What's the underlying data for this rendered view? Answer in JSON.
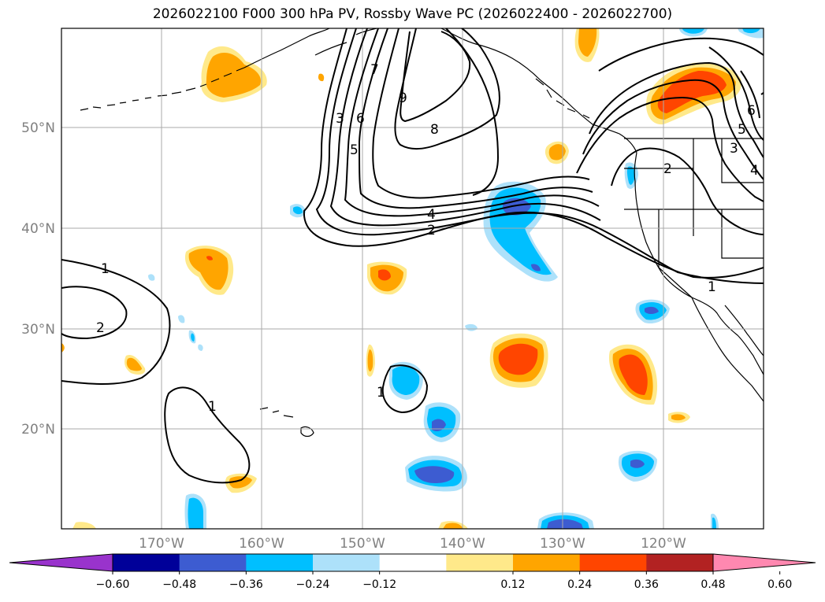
{
  "title": "2026022100 F000 300 hPa PV, Rossby Wave PC (2026022400 - 2026022700)",
  "latitude_labels": [
    "50°N",
    "40°N",
    "30°N",
    "20°N"
  ],
  "longitude_labels": [
    "170°W",
    "160°W",
    "150°W",
    "140°W",
    "130°W",
    "120°W"
  ],
  "colorbar": {
    "tick_labels": [
      "−0.60",
      "−0.48",
      "−0.36",
      "−0.24",
      "−0.12",
      "0.12",
      "0.24",
      "0.36",
      "0.48",
      "0.60"
    ],
    "colors": [
      "#9933cc",
      "#000099",
      "#3d5cd1",
      "#00bfff",
      "#ade1fa",
      "#ffffff",
      "#ffe98a",
      "#ffa500",
      "#ff4500",
      "#b22222",
      "#ff88b0"
    ]
  },
  "contour_labels": [
    "1",
    "2",
    "1",
    "3",
    "6",
    "5",
    "7",
    "9",
    "8",
    "4",
    "2",
    "1",
    "2",
    "6",
    "5",
    "3",
    "4",
    "1"
  ]
}
